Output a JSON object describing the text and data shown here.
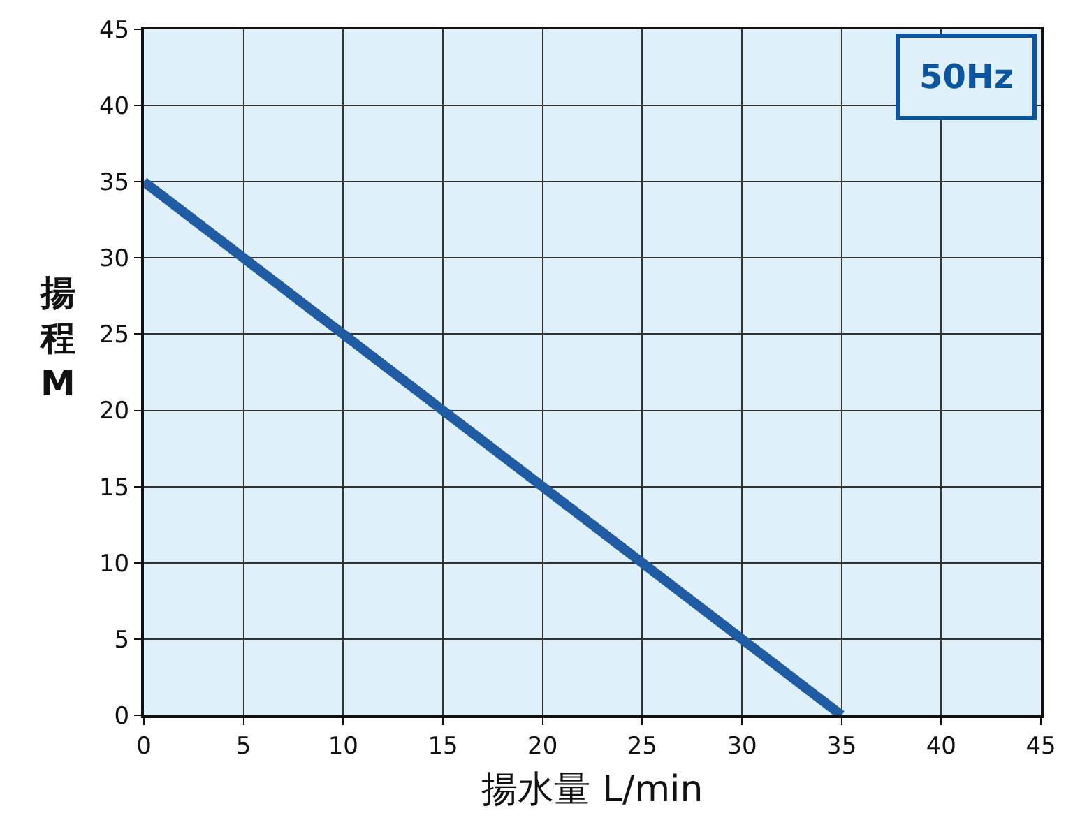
{
  "chart_data": {
    "type": "line",
    "xlabel": "揚水量 L/min",
    "ylabel": "揚程 M",
    "annotations": [
      "50Hz"
    ],
    "x": [
      0,
      35
    ],
    "series": [
      {
        "color": "#1f5ca3",
        "values": [
          35,
          0
        ]
      }
    ],
    "xlim": [
      0,
      45
    ],
    "ylim": [
      0,
      45
    ],
    "xticks": [
      0,
      5,
      10,
      15,
      20,
      25,
      30,
      35,
      40,
      45
    ],
    "yticks": [
      0,
      5,
      10,
      15,
      20,
      25,
      30,
      35,
      40,
      45
    ],
    "grid": true,
    "marker": "none",
    "line_style": "solid"
  }
}
